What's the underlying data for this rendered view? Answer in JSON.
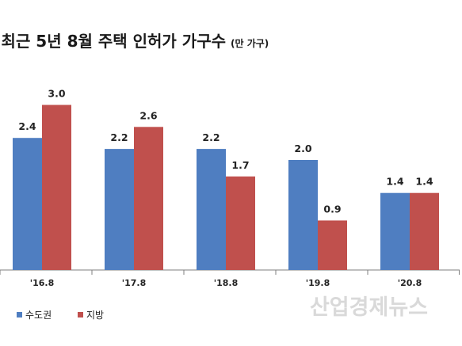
{
  "chart_data": {
    "type": "bar",
    "title": "최근 5년 8월 주택 인허가 가구수",
    "unit": "(만 가구)",
    "categories": [
      "'16.8",
      "'17.8",
      "'18.8",
      "'19.8",
      "'20.8"
    ],
    "series": [
      {
        "name": "수도권",
        "values": [
          2.4,
          2.2,
          2.2,
          2.0,
          1.4
        ],
        "color": "#4f7ec1"
      },
      {
        "name": "지방",
        "values": [
          3.0,
          2.6,
          1.7,
          0.9,
          1.4
        ],
        "color": "#c0504d"
      }
    ],
    "ylim": [
      0,
      3.2
    ],
    "legend_position": "bottom-left",
    "grid": false
  },
  "watermark": "산업경제뉴스"
}
